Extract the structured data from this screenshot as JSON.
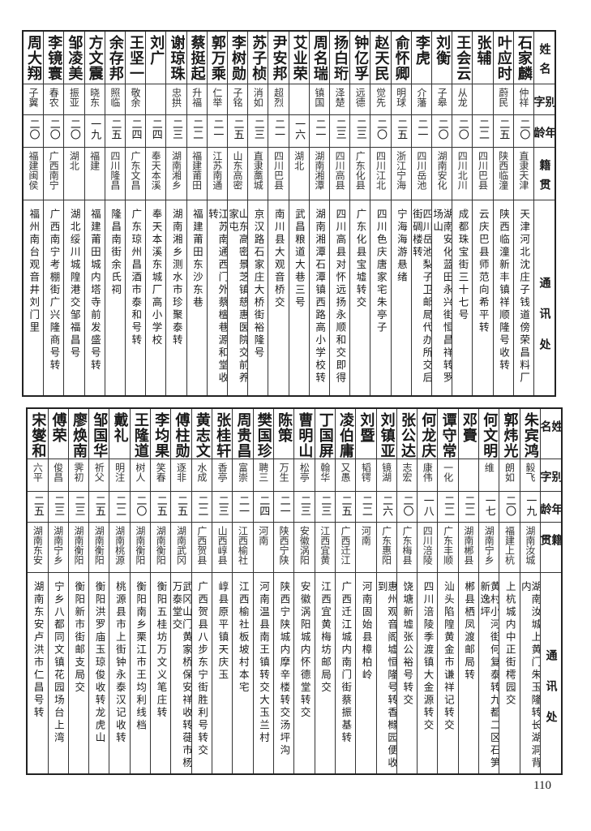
{
  "headers": [
    "姓名",
    "别字",
    "年龄",
    "籍贯",
    "通讯处"
  ],
  "top_table": [
    {
      "name": "石家麟",
      "alias": "仲祥",
      "age": "二〇",
      "native": "直隶天津",
      "address": "天津河北沈庄子钱道傍荣昌料厂"
    },
    {
      "name": "叶应时",
      "alias": "蔚民",
      "age": "二五",
      "native": "陕西临潼",
      "address": "陕西临潼新丰镇祥顺隆号收转"
    },
    {
      "name": "张辅",
      "alias": "",
      "age": "二二",
      "native": "四川巴县",
      "address": "云庆巴县师范向希平转"
    },
    {
      "name": "王会云",
      "alias": "从龙",
      "age": "二〇",
      "native": "四川北川",
      "address": "成都珠宝街三十七号"
    },
    {
      "name": "刘衡",
      "alias": "子皋",
      "age": "二〇",
      "native": "湖南安化",
      "address": "湖南安化蓝田永兴街恒昌祥转罗场山"
    },
    {
      "name": "李虎",
      "alias": "介藩",
      "age": "二一",
      "native": "四川岳池",
      "address": "四川岳池梨子卫邮局代办所交后街碉楼转"
    },
    {
      "name": "俞怀卿",
      "alias": "明球",
      "age": "二五",
      "native": "浙江宁海",
      "address": "宁海海游悬绪"
    },
    {
      "name": "赵天民",
      "alias": "觉先",
      "age": "二〇",
      "native": "四川江北",
      "address": "四川色庆唐家宅朱亭子"
    },
    {
      "name": "钟亿孚",
      "alias": "远德",
      "age": "二三",
      "native": "广东化县",
      "address": "广东化县宝墟转交"
    },
    {
      "name": "扬白珩",
      "alias": "泽楚",
      "age": "二三",
      "native": "四川高县",
      "address": "四川高县对怀远扬永顺和交即得"
    },
    {
      "name": "周名瑞",
      "alias": "镇国",
      "age": "二一",
      "native": "湖南湘潭",
      "address": "湖南湘潭石潭镇西路高小学校转"
    },
    {
      "name": "艾业荣",
      "alias": "",
      "age": "一六",
      "native": "湖北",
      "address": "武昌粮道大巷三号"
    },
    {
      "name": "尹安邦",
      "alias": "超烈",
      "age": "二一",
      "native": "四川巴县",
      "address": "南川县大观音桥交"
    },
    {
      "name": "苏子桢",
      "alias": "消如",
      "age": "二三",
      "native": "直隶藁城",
      "address": "京汉路石家庄大桥街裕隆号"
    },
    {
      "name": "李树勋",
      "alias": "子铭",
      "age": "二五",
      "native": "山东高密",
      "address": "山东高密景芝镇慈惠医院交前养家屯"
    },
    {
      "name": "郭万乘",
      "alias": "仁举",
      "age": "二一",
      "native": "江苏南通",
      "address": "江苏南通西门外蔡檀巷源和堂收转"
    },
    {
      "name": "蔡挺起",
      "alias": "升福",
      "age": "二二",
      "native": "福建莆田",
      "address": "福建莆田东沙东巷"
    },
    {
      "name": "谢琼珠",
      "alias": "忠拱",
      "age": "二三",
      "native": "湖南湘乡",
      "address": "湖南湘乡测水市珍聚泰转"
    },
    {
      "name": "刘广",
      "alias": "",
      "age": "二四",
      "native": "奉天本溪",
      "address": "奉天本溪东城厂高小学校"
    },
    {
      "name": "王坚一",
      "alias": "敬余",
      "age": "二四",
      "native": "广东文昌",
      "address": "广东琼州昌酒市泰和号转"
    },
    {
      "name": "余存邦",
      "alias": "照临",
      "age": "二五",
      "native": "四川隆昌",
      "address": "隆昌南街余氏祠"
    },
    {
      "name": "方文震",
      "alias": "晓东",
      "age": "一九",
      "native": "福建",
      "address": "福建莆田城内塔寺前发盛号转"
    },
    {
      "name": "邹凌美",
      "alias": "振亚",
      "age": "二〇",
      "native": "湖北",
      "address": "湖北绥川城隍港交邹福昌号"
    },
    {
      "name": "李镜寰",
      "alias": "春农",
      "age": "二〇",
      "native": "广西南宁",
      "address": "广西南宁考棚街广兴隆商号转"
    },
    {
      "name": "周大翔",
      "alias": "子翼",
      "age": "二〇",
      "native": "福建闽侯",
      "address": "福州南台观音井刘门里"
    }
  ],
  "bottom_table": [
    {
      "name": "朱宾鸿",
      "alias": "毅飞",
      "age": "一九",
      "native": "湖南汝城",
      "address": "湖南汝城上黄门朱玉隆转长湖洞背内"
    },
    {
      "name": "郭炜光",
      "alias": "朗如",
      "age": "二〇",
      "native": "福建上杭",
      "address": "上杭城内中正街樗园交"
    },
    {
      "name": "何文明",
      "alias": "维",
      "age": "一七",
      "native": "湖南宁乡",
      "address": "黄村小河街何复泰转九都二区石笋新逸坪"
    },
    {
      "name": "邓賷",
      "alias": "",
      "age": "二二",
      "native": "湖南郴县",
      "address": "郴县栖凤渡邮局转"
    },
    {
      "name": "谭守常",
      "alias": "一化",
      "age": "二二",
      "native": "广东丰顺",
      "address": "汕头陷隍黄金市谦祥记转交"
    },
    {
      "name": "何龙庆",
      "alias": "康伟",
      "age": "一八",
      "native": "四川涪陵",
      "address": "四川涪陵季渡镇大金源转交"
    },
    {
      "name": "张公达",
      "alias": "志宏",
      "age": "二〇",
      "native": "广东梅县",
      "address": "饶塘新墟张公裕号转交"
    },
    {
      "name": "刘镇亚",
      "alias": "镜湖",
      "age": "二六",
      "native": "广东惠阳",
      "address": "惠州观音阁墟恒隆号转香橼园便收到"
    },
    {
      "name": "刘暨",
      "alias": "韬锷",
      "age": "二二",
      "native": "河南",
      "address": "河南固始县樟柏岭"
    },
    {
      "name": "凌伯庸",
      "alias": "又愚",
      "age": "二五",
      "native": "广西迁江",
      "address": "广西迁江城内南门街蔡振基转"
    },
    {
      "name": "丁国屏",
      "alias": "翰华",
      "age": "二三",
      "native": "江西宜黄",
      "address": "江西宜黄梅坊邮局交"
    },
    {
      "name": "曹明山",
      "alias": "松亭",
      "age": "二三",
      "native": "安徽涡阳",
      "address": "安徽涡阳城内怀德堂转交"
    },
    {
      "name": "陈策",
      "alias": "万生",
      "age": "二一",
      "native": "陕西宁陕",
      "address": "陕西宁陕城内摩辛楼转交汤坪沟"
    },
    {
      "name": "樊国珍",
      "alias": "聘三",
      "age": "二四",
      "native": "河南",
      "address": "河南温县南王镇转交大玉兰村"
    },
    {
      "name": "周贵昌",
      "alias": "富崇",
      "age": "二一",
      "native": "江西榆社",
      "address": "江西榆社板坡村本宅"
    },
    {
      "name": "张桂轩",
      "alias": "香亭",
      "age": "二三",
      "native": "山西崞县",
      "address": "崞县原平镇天庆玉"
    },
    {
      "name": "黄志文",
      "alias": "水成",
      "age": "二二",
      "native": "广西贺县",
      "address": "广西贺县八步东宁街胜利号转交"
    },
    {
      "name": "傅柱勋",
      "alias": "逐非",
      "age": "二五",
      "native": "湖南武冈",
      "address": "武冈山门黄家桥保安祥收转蓰市杨万泰堂交"
    },
    {
      "name": "李均果",
      "alias": "笑春",
      "age": "二五",
      "native": "湖南衡阳",
      "address": "衡阳五桂坊万文义笔庄转"
    },
    {
      "name": "王隆道",
      "alias": "树人",
      "age": "二〇",
      "native": "湖南衡阳",
      "address": "衡阳南乡栗江市王均利线档"
    },
    {
      "name": "戴礼",
      "alias": "明注",
      "age": "二二",
      "native": "湖南桃源",
      "address": "桃源县市上街钟永泰汉记收转"
    },
    {
      "name": "邹国华",
      "alias": "祈父",
      "age": "二五",
      "native": "湖南衡阳",
      "address": "衡阳洪罗庙玉琼俊收转龙虎山"
    },
    {
      "name": "廖焕南",
      "alias": "霁初",
      "age": "二三",
      "native": "湖南衡阳",
      "address": "衡阳新市街邮支局交"
    },
    {
      "name": "傅荣",
      "alias": "俊昌",
      "age": "二三",
      "native": "湖南宁乡",
      "address": "宁乡八都同文镇花园场台上湾"
    },
    {
      "name": "宋燮和",
      "alias": "六平",
      "age": "二五",
      "native": "湖南东安",
      "address": "湖南东安卢洪市仁昌号转"
    }
  ],
  "page_number": "110"
}
